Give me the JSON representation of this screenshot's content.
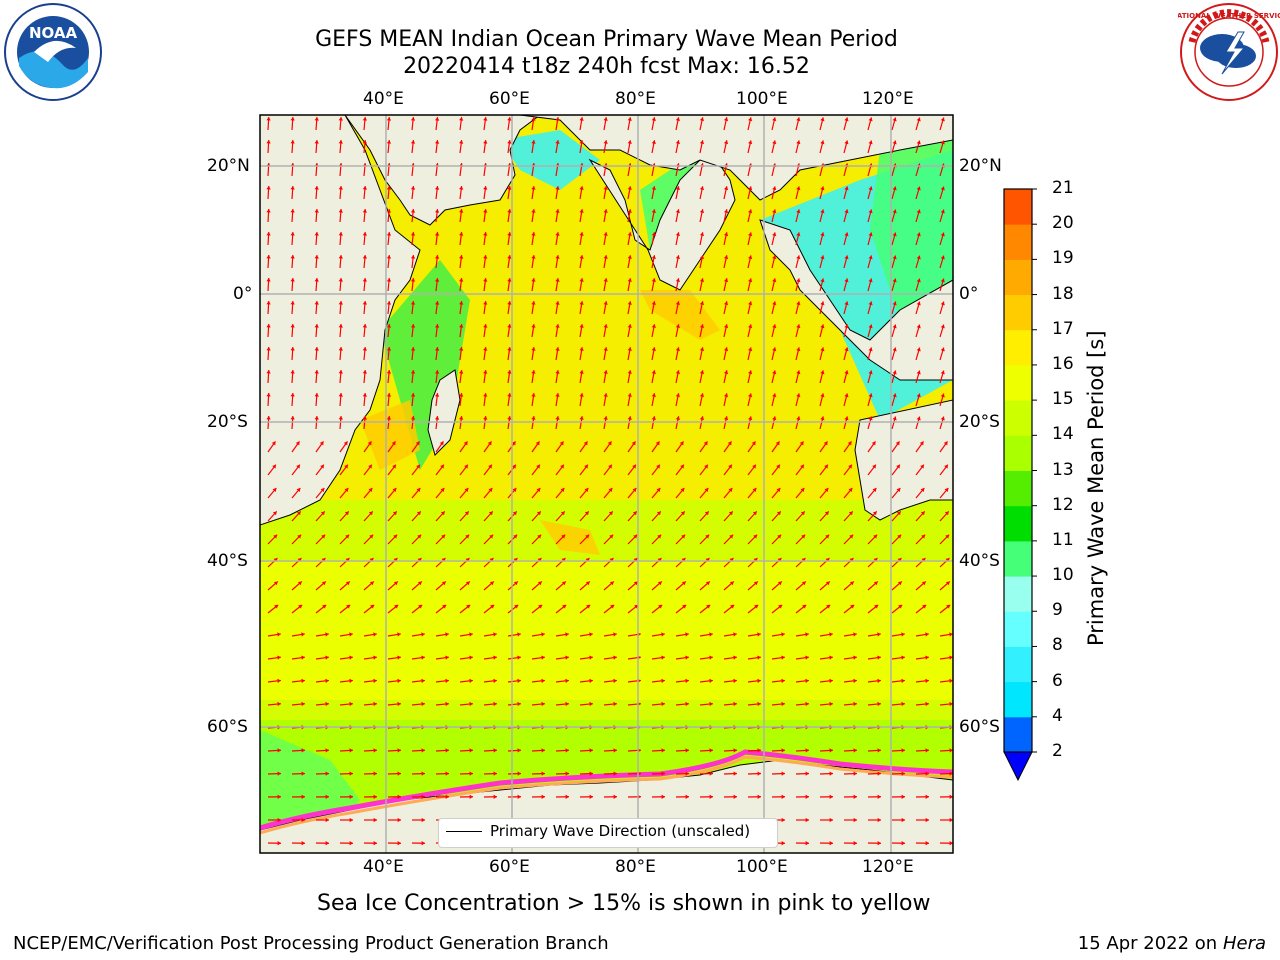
{
  "header": {
    "title_line1": "GEFS MEAN Indian Ocean Primary Wave Mean Period",
    "title_line2": "20220414 t18z 240h fcst   Max: 16.52"
  },
  "logos": {
    "left": "NOAA",
    "right": "NATIONAL WEATHER SERVICE",
    "left_ring_text": "NATIONAL OCEANIC AND ATMOSPHERIC ADMINISTRATION · U.S. DEPARTMENT OF COMMERCE"
  },
  "map": {
    "lon_labels": [
      "40°E",
      "60°E",
      "80°E",
      "100°E",
      "120°E"
    ],
    "lat_labels": [
      "20°N",
      "0°",
      "20°S",
      "40°S",
      "60°S"
    ],
    "legend_label": "Primary Wave Direction (unscaled)",
    "colors": {
      "land": "#efefdf",
      "ocean": "#f5ee00",
      "arrow": "#ff0000",
      "grid": "#b0b0b0"
    }
  },
  "colorbar": {
    "label": "Primary Wave Mean Period [s]",
    "ticks": [
      "2",
      "4",
      "6",
      "8",
      "9",
      "10",
      "11",
      "12",
      "13",
      "14",
      "15",
      "16",
      "17",
      "18",
      "19",
      "20",
      "21"
    ],
    "colors": [
      "#0064ff",
      "#00e6ff",
      "#33f0ff",
      "#66ffff",
      "#99ffee",
      "#44ff77",
      "#00dd00",
      "#55ee00",
      "#aaff00",
      "#ccff00",
      "#eeff00",
      "#ffee00",
      "#ffcc00",
      "#ffaa00",
      "#ff8800",
      "#ff5500",
      "#ff2200",
      "#ff0000"
    ],
    "extend_color": "#0000ff"
  },
  "caption": "Sea Ice Concentration > 15% is shown in pink to yellow",
  "footer": {
    "left": "NCEP/EMC/Verification Post Processing Product Generation Branch",
    "date": "15 Apr 2022 on",
    "host": "Hera"
  }
}
